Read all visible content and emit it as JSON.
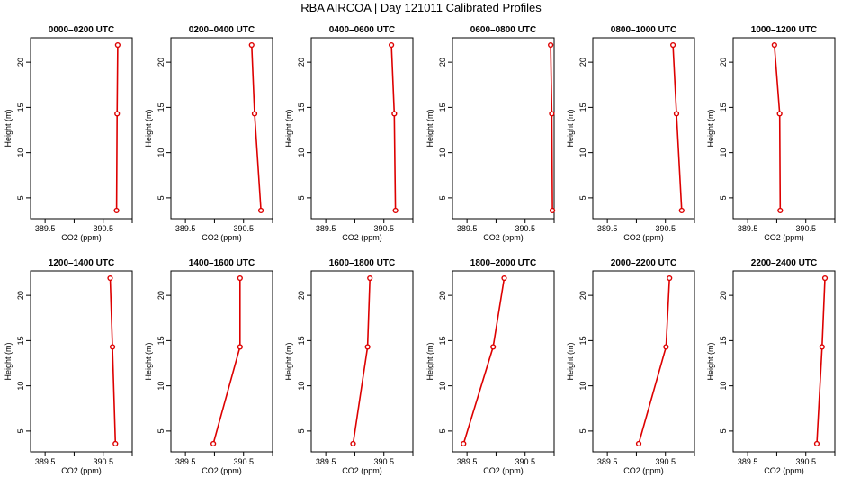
{
  "page": {
    "title": "RBA AIRCOA  |  Day 121011  Calibrated Profiles"
  },
  "chart_data": {
    "type": "line",
    "color": "#dd0000",
    "shared_axes": {
      "xlabel": "CO2 (ppm)",
      "ylabel": "Height (m)",
      "xlim": [
        389.25,
        391.0
      ],
      "xticks": [
        "389.5",
        "390.5"
      ],
      "xtick_values": [
        389.5,
        390.5
      ],
      "ylim": [
        2.7,
        22.7
      ],
      "yticks": [
        "5",
        "10",
        "15",
        "20"
      ],
      "ytick_values": [
        5,
        10,
        15,
        20
      ]
    },
    "panels": [
      {
        "title": "0000–0200 UTC",
        "x": [
          390.75,
          390.74,
          390.73
        ],
        "y": [
          21.9,
          14.3,
          3.6
        ]
      },
      {
        "title": "0200–0400 UTC",
        "x": [
          390.64,
          390.69,
          390.8
        ],
        "y": [
          21.9,
          14.3,
          3.6
        ]
      },
      {
        "title": "0400–0600 UTC",
        "x": [
          390.63,
          390.68,
          390.7
        ],
        "y": [
          21.9,
          14.3,
          3.6
        ]
      },
      {
        "title": "0600–0800 UTC",
        "x": [
          390.94,
          390.96,
          390.97
        ],
        "y": [
          21.9,
          14.3,
          3.6
        ]
      },
      {
        "title": "0800–1000 UTC",
        "x": [
          390.63,
          390.69,
          390.78
        ],
        "y": [
          21.9,
          14.3,
          3.6
        ]
      },
      {
        "title": "1000–1200 UTC",
        "x": [
          389.96,
          390.05,
          390.06
        ],
        "y": [
          21.9,
          14.3,
          3.6
        ]
      },
      {
        "title": "1200–1400 UTC",
        "x": [
          390.62,
          390.66,
          390.71
        ],
        "y": [
          21.9,
          14.3,
          3.6
        ]
      },
      {
        "title": "1400–1600 UTC",
        "x": [
          390.44,
          390.44,
          389.98
        ],
        "y": [
          21.9,
          14.3,
          3.6
        ]
      },
      {
        "title": "1600–1800 UTC",
        "x": [
          390.26,
          390.22,
          389.97
        ],
        "y": [
          21.9,
          14.3,
          3.6
        ]
      },
      {
        "title": "1800–2000 UTC",
        "x": [
          390.14,
          389.95,
          389.44
        ],
        "y": [
          21.9,
          14.3,
          3.6
        ]
      },
      {
        "title": "2000–2200 UTC",
        "x": [
          390.57,
          390.51,
          390.04
        ],
        "y": [
          21.9,
          14.3,
          3.6
        ]
      },
      {
        "title": "2200–2400 UTC",
        "x": [
          390.83,
          390.78,
          390.69
        ],
        "y": [
          21.9,
          14.3,
          3.6
        ]
      }
    ]
  }
}
